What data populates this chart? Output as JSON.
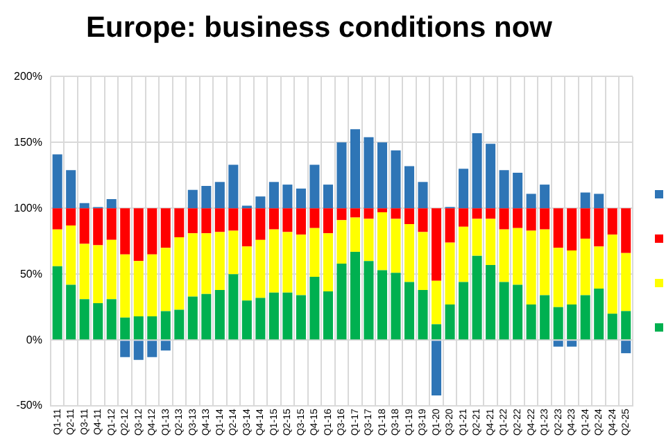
{
  "chart_data": {
    "type": "bar",
    "title": "Europe: business conditions now",
    "stacked": true,
    "grid": true,
    "categories": [
      "Q1-11",
      "Q2-11",
      "Q3-11",
      "Q4-11",
      "Q1-12",
      "Q2-12",
      "Q3-12",
      "Q4-12",
      "Q1-13",
      "Q2-13",
      "Q3-13",
      "Q4-13",
      "Q1-14",
      "Q2-14",
      "Q3-14",
      "Q4-14",
      "Q1-15",
      "Q2-15",
      "Q3-15",
      "Q4-15",
      "Q1-16",
      "Q3-16",
      "Q1-17",
      "Q3-17",
      "Q1-18",
      "Q3-18",
      "Q1-19",
      "Q3-19",
      "Q1-20",
      "Q3-20",
      "Q1-21",
      "Q2-21",
      "Q4-21",
      "Q1-22",
      "Q2-22",
      "Q4-22",
      "Q1-23",
      "Q2-23",
      "Q4-23",
      "Q1-24",
      "Q2-24",
      "Q4-24",
      "Q2-25"
    ],
    "ylim": [
      -50,
      200
    ],
    "yticks": [
      {
        "value": -50,
        "label": "-50%"
      },
      {
        "value": 0,
        "label": "0%"
      },
      {
        "value": 50,
        "label": "50%"
      },
      {
        "value": 100,
        "label": "100%"
      },
      {
        "value": 150,
        "label": "150%"
      },
      {
        "value": 200,
        "label": "200%"
      }
    ],
    "series": [
      {
        "color": "#00b050",
        "values": [
          56,
          42,
          31,
          28,
          31,
          17,
          18,
          18,
          22,
          23,
          33,
          35,
          38,
          50,
          30,
          32,
          36,
          36,
          34,
          48,
          37,
          58,
          67,
          60,
          53,
          51,
          44,
          38,
          12,
          27,
          44,
          64,
          57,
          44,
          42,
          27,
          34,
          25,
          27,
          34,
          39,
          20,
          22
        ]
      },
      {
        "color": "#ffff00",
        "values": [
          28,
          45,
          42,
          44,
          45,
          48,
          42,
          47,
          48,
          55,
          48,
          46,
          44,
          33,
          41,
          44,
          48,
          46,
          46,
          37,
          44,
          33,
          26,
          32,
          44,
          41,
          44,
          44,
          33,
          47,
          42,
          28,
          35,
          40,
          43,
          56,
          50,
          45,
          41,
          43,
          32,
          60,
          44
        ]
      },
      {
        "color": "#ff0000",
        "values": [
          16,
          13,
          27,
          28,
          24,
          35,
          40,
          35,
          30,
          22,
          19,
          19,
          18,
          17,
          29,
          24,
          16,
          18,
          20,
          15,
          19,
          9,
          7,
          8,
          3,
          8,
          12,
          18,
          55,
          26,
          14,
          8,
          8,
          16,
          15,
          17,
          16,
          30,
          32,
          23,
          29,
          20,
          34
        ]
      },
      {
        "color": "#2e75b6",
        "values": [
          41,
          29,
          4,
          1,
          7,
          -13,
          -15,
          -13,
          -8,
          0,
          14,
          17,
          20,
          33,
          2,
          9,
          20,
          18,
          15,
          33,
          18,
          50,
          60,
          54,
          50,
          44,
          32,
          20,
          -42,
          1,
          30,
          57,
          49,
          29,
          27,
          11,
          18,
          -5,
          -5,
          12,
          11,
          0,
          -10
        ]
      }
    ]
  }
}
